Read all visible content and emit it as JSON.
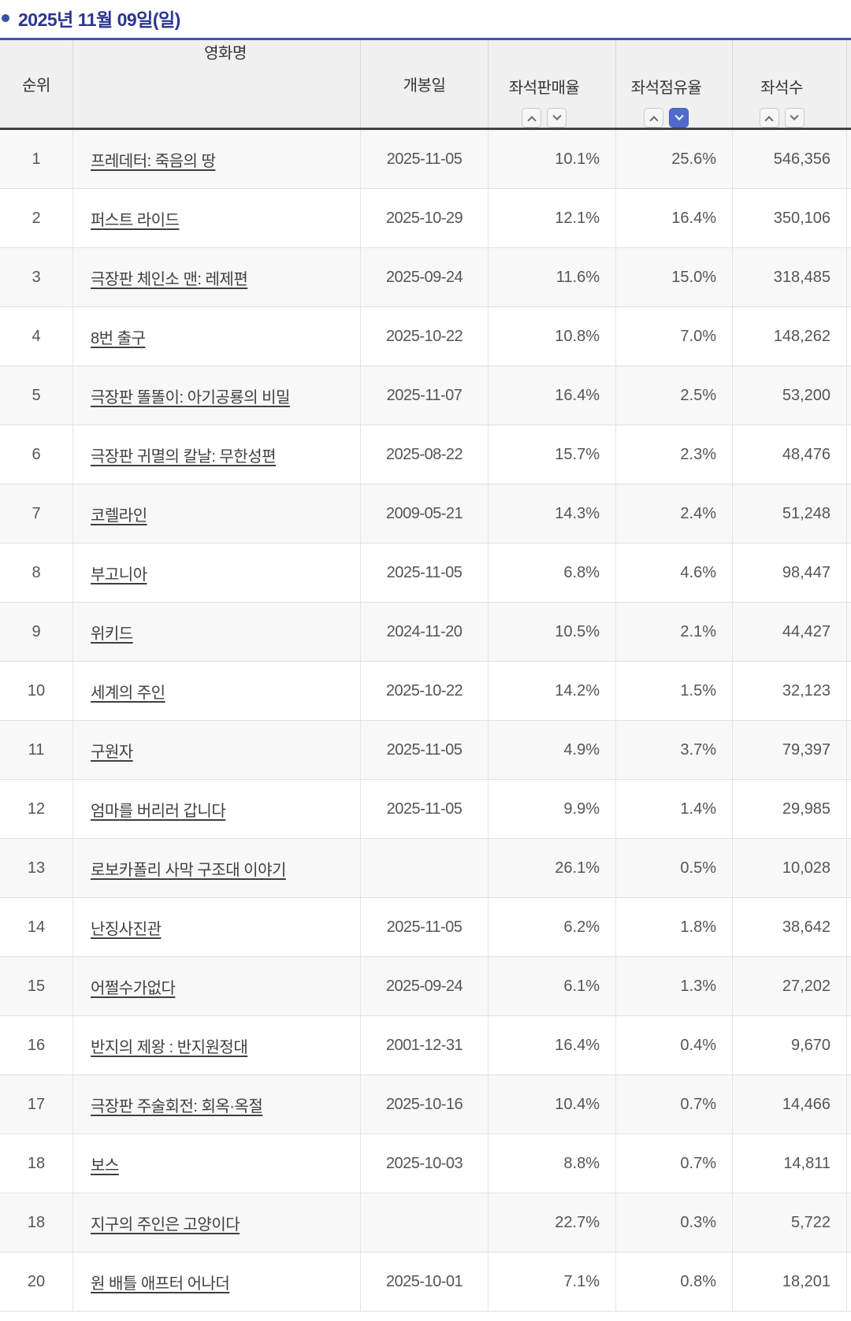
{
  "page": {
    "date_title": "2025년 11월 09일(일)"
  },
  "icons": {
    "bullet": "ring-circle",
    "sort_ascending": "chevron-up",
    "sort_descending": "chevron-down"
  },
  "colors": {
    "title_navy": "#2b3690",
    "bullet_ring_blue": "#3d4fa8",
    "table_top_border_blue": "#3e56b0",
    "header_bg": "#f0f0f0",
    "header_bottom_border": "#414141",
    "active_sort_blue": "#4f6bcb",
    "row_alt_bg": "#f8f8f8",
    "link_gray": "#3f3f3f"
  },
  "table": {
    "columns": {
      "rank": "순위",
      "title": "영화명",
      "release": "개봉일",
      "sales_rate": "좌석판매율",
      "occupancy_rate": "좌석점유율",
      "seats": "좌석수"
    },
    "sort": {
      "active_column": "좌석점유율",
      "active_direction": "descending"
    },
    "rows": [
      {
        "rank": "1",
        "title": "프레데터: 죽음의 땅",
        "release": "2025-11-05",
        "sales": "10.1%",
        "occupancy": "25.6%",
        "seats": "546,356"
      },
      {
        "rank": "2",
        "title": "퍼스트 라이드",
        "release": "2025-10-29",
        "sales": "12.1%",
        "occupancy": "16.4%",
        "seats": "350,106"
      },
      {
        "rank": "3",
        "title": "극장판 체인소 맨: 레제편",
        "release": "2025-09-24",
        "sales": "11.6%",
        "occupancy": "15.0%",
        "seats": "318,485"
      },
      {
        "rank": "4",
        "title": "8번 출구",
        "release": "2025-10-22",
        "sales": "10.8%",
        "occupancy": "7.0%",
        "seats": "148,262"
      },
      {
        "rank": "5",
        "title": "극장판 똘똘이: 아기공룡의 비밀",
        "release": "2025-11-07",
        "sales": "16.4%",
        "occupancy": "2.5%",
        "seats": "53,200"
      },
      {
        "rank": "6",
        "title": "극장판 귀멸의 칼날: 무한성편",
        "release": "2025-08-22",
        "sales": "15.7%",
        "occupancy": "2.3%",
        "seats": "48,476"
      },
      {
        "rank": "7",
        "title": "코렐라인",
        "release": "2009-05-21",
        "sales": "14.3%",
        "occupancy": "2.4%",
        "seats": "51,248"
      },
      {
        "rank": "8",
        "title": "부고니아",
        "release": "2025-11-05",
        "sales": "6.8%",
        "occupancy": "4.6%",
        "seats": "98,447"
      },
      {
        "rank": "9",
        "title": "위키드",
        "release": "2024-11-20",
        "sales": "10.5%",
        "occupancy": "2.1%",
        "seats": "44,427"
      },
      {
        "rank": "10",
        "title": "세계의 주인",
        "release": "2025-10-22",
        "sales": "14.2%",
        "occupancy": "1.5%",
        "seats": "32,123"
      },
      {
        "rank": "11",
        "title": "구원자",
        "release": "2025-11-05",
        "sales": "4.9%",
        "occupancy": "3.7%",
        "seats": "79,397"
      },
      {
        "rank": "12",
        "title": "엄마를 버리러 갑니다",
        "release": "2025-11-05",
        "sales": "9.9%",
        "occupancy": "1.4%",
        "seats": "29,985"
      },
      {
        "rank": "13",
        "title": "로보카폴리 사막 구조대 이야기",
        "release": "",
        "sales": "26.1%",
        "occupancy": "0.5%",
        "seats": "10,028"
      },
      {
        "rank": "14",
        "title": "난징사진관",
        "release": "2025-11-05",
        "sales": "6.2%",
        "occupancy": "1.8%",
        "seats": "38,642"
      },
      {
        "rank": "15",
        "title": "어쩔수가없다",
        "release": "2025-09-24",
        "sales": "6.1%",
        "occupancy": "1.3%",
        "seats": "27,202"
      },
      {
        "rank": "16",
        "title": "반지의 제왕 : 반지원정대",
        "release": "2001-12-31",
        "sales": "16.4%",
        "occupancy": "0.4%",
        "seats": "9,670"
      },
      {
        "rank": "17",
        "title": "극장판 주술회전: 회옥·옥절",
        "release": "2025-10-16",
        "sales": "10.4%",
        "occupancy": "0.7%",
        "seats": "14,466"
      },
      {
        "rank": "18",
        "title": "보스",
        "release": "2025-10-03",
        "sales": "8.8%",
        "occupancy": "0.7%",
        "seats": "14,811"
      },
      {
        "rank": "18",
        "title": "지구의 주인은 고양이다",
        "release": "",
        "sales": "22.7%",
        "occupancy": "0.3%",
        "seats": "5,722"
      },
      {
        "rank": "20",
        "title": "원 배틀 애프터 어나더",
        "release": "2025-10-01",
        "sales": "7.1%",
        "occupancy": "0.8%",
        "seats": "18,201"
      }
    ]
  }
}
